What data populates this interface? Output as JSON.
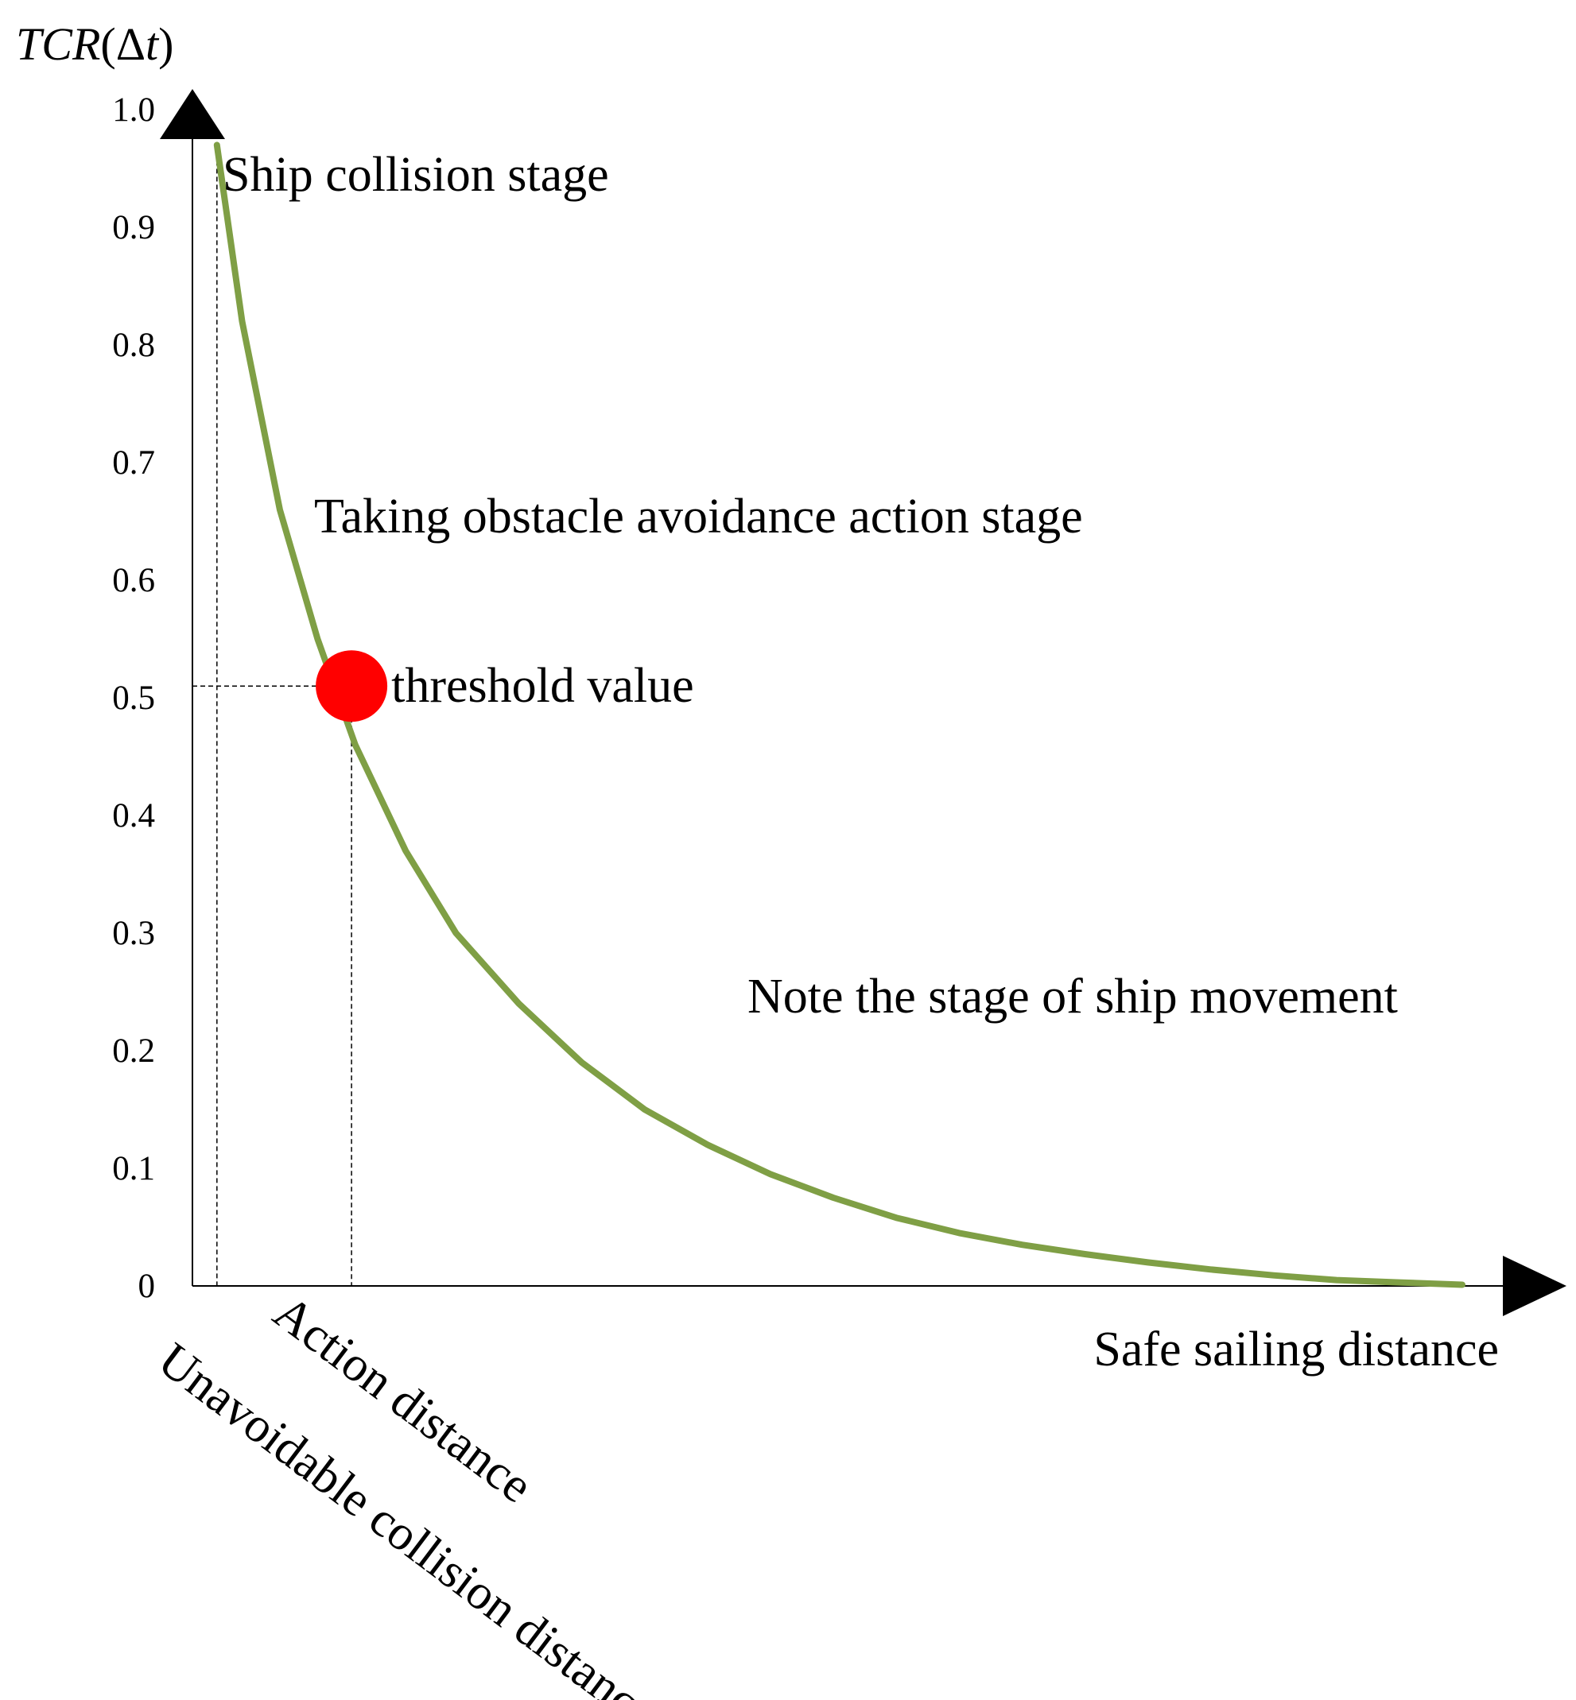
{
  "chart_data": {
    "type": "line",
    "y_axis_title": {
      "prefix": "TCR",
      "open": "(",
      "delta": "Δ",
      "var": "t",
      "close": ")"
    },
    "x_axis_title": "Safe sailing distance",
    "ylim": [
      0,
      1.0
    ],
    "xlim": [
      0,
      1
    ],
    "y_ticks": [
      "1.0",
      "0.9",
      "0.8",
      "0.7",
      "0.6",
      "0.5",
      "0.4",
      "0.3",
      "0.2",
      "0.1",
      "0"
    ],
    "y_tick_values": [
      1.0,
      0.9,
      0.8,
      0.7,
      0.6,
      0.5,
      0.4,
      0.3,
      0.2,
      0.1,
      0
    ],
    "grid": false,
    "series": [
      {
        "x": [
          0.01,
          0.03,
          0.06,
          0.09,
          0.12,
          0.16,
          0.2,
          0.25,
          0.3,
          0.35,
          0.4,
          0.45,
          0.5,
          0.55,
          0.6,
          0.65,
          0.7,
          0.75,
          0.8,
          0.85,
          0.9,
          0.95,
          1.0
        ],
        "y": [
          0.97,
          0.82,
          0.66,
          0.55,
          0.46,
          0.37,
          0.3,
          0.24,
          0.19,
          0.15,
          0.12,
          0.095,
          0.075,
          0.058,
          0.045,
          0.035,
          0.027,
          0.02,
          0.014,
          0.009,
          0.005,
          0.003,
          0.001
        ]
      }
    ],
    "series_color": "#7f9f45",
    "threshold_point": {
      "x": 0.117,
      "y": 0.51,
      "label": "threshold value",
      "color": "#ff0000"
    },
    "reference_lines": [
      {
        "type": "vertical",
        "x": 0.01,
        "label": "Unavoidable collision distance"
      },
      {
        "type": "vertical",
        "x": 0.117,
        "label": "Action distance"
      },
      {
        "type": "horizontal",
        "y": 0.51
      }
    ],
    "annotations": [
      "Ship collision stage",
      "Taking obstacle avoidance action stage",
      "Note the stage of ship movement"
    ]
  }
}
